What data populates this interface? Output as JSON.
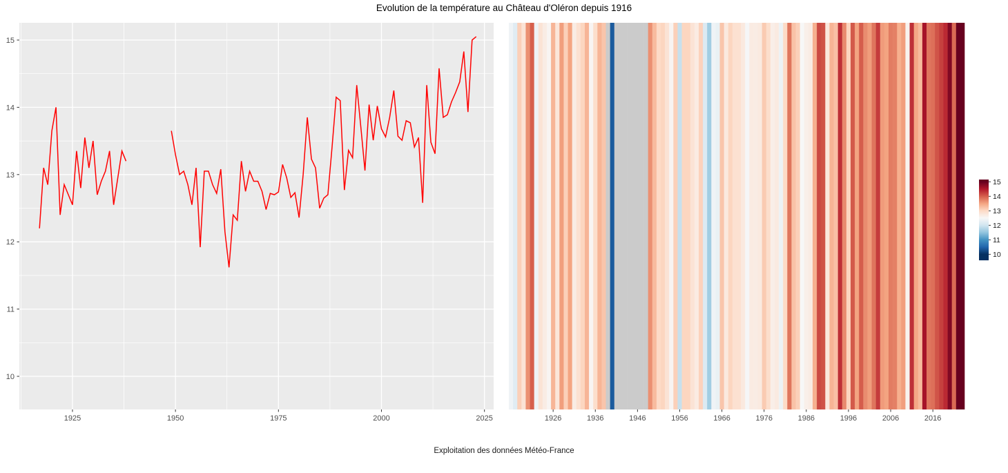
{
  "title": "Evolution de la température au Château d'Oléron depuis 1916",
  "caption": "Exploitation des données Météo-France",
  "colors": {
    "line": "#FF0000",
    "panel_bg": "#EBEBEB",
    "grid": "#FFFFFF",
    "na_stripe": "#CBCBCB",
    "axis_text": "#4D4D4D",
    "legend_text": "#1A1A1A",
    "rdbu_stops": [
      "#053061",
      "#2166AC",
      "#4393C3",
      "#92C5DE",
      "#D1E5F0",
      "#F7F7F7",
      "#FDDBC7",
      "#F4A582",
      "#D6604D",
      "#B2182B",
      "#67001F"
    ]
  },
  "chart_data": {
    "type": [
      "line",
      "heatmap-stripes"
    ],
    "title": "Evolution de la température au Château d'Oléron depuis 1916",
    "caption": "Exploitation des données Météo-France",
    "ylabel": "",
    "xlabel": "",
    "line_axis": {
      "x_ticks": [
        1925,
        1950,
        1975,
        2000,
        2025
      ],
      "y_ticks": [
        10,
        11,
        12,
        13,
        14,
        15
      ],
      "ylim_ticks": [
        10,
        15
      ],
      "grid": true
    },
    "stripes_axis": {
      "x_ticks": [
        1926,
        1936,
        1946,
        1956,
        1966,
        1976,
        1986,
        1996,
        2006,
        2016
      ]
    },
    "legend": {
      "position": "right",
      "ticks": [
        15,
        14,
        13,
        12,
        11,
        10
      ],
      "range": [
        10,
        15
      ]
    },
    "line_start_year": 1917,
    "series": [
      [
        1916,
        12.4
      ],
      [
        1917,
        12.2
      ],
      [
        1918,
        13.1
      ],
      [
        1919,
        12.85
      ],
      [
        1920,
        13.65
      ],
      [
        1921,
        14.0
      ],
      [
        1922,
        12.4
      ],
      [
        1923,
        12.85
      ],
      [
        1924,
        12.7
      ],
      [
        1925,
        12.55
      ],
      [
        1926,
        13.35
      ],
      [
        1927,
        12.8
      ],
      [
        1928,
        13.55
      ],
      [
        1929,
        13.1
      ],
      [
        1930,
        13.5
      ],
      [
        1931,
        12.7
      ],
      [
        1932,
        12.9
      ],
      [
        1933,
        13.05
      ],
      [
        1934,
        13.35
      ],
      [
        1935,
        12.55
      ],
      [
        1936,
        12.95
      ],
      [
        1937,
        13.35
      ],
      [
        1938,
        13.2
      ],
      [
        1939,
        null
      ],
      [
        1940,
        10.4
      ],
      [
        1941,
        null
      ],
      [
        1942,
        null
      ],
      [
        1943,
        null
      ],
      [
        1944,
        null
      ],
      [
        1945,
        null
      ],
      [
        1946,
        null
      ],
      [
        1947,
        null
      ],
      [
        1948,
        null
      ],
      [
        1949,
        13.65
      ],
      [
        1950,
        13.3
      ],
      [
        1951,
        13.0
      ],
      [
        1952,
        13.05
      ],
      [
        1953,
        12.85
      ],
      [
        1954,
        12.55
      ],
      [
        1955,
        13.1
      ],
      [
        1956,
        11.92
      ],
      [
        1957,
        13.05
      ],
      [
        1958,
        13.05
      ],
      [
        1959,
        12.85
      ],
      [
        1960,
        12.72
      ],
      [
        1961,
        13.08
      ],
      [
        1962,
        12.15
      ],
      [
        1963,
        11.62
      ],
      [
        1964,
        12.4
      ],
      [
        1965,
        12.32
      ],
      [
        1966,
        13.2
      ],
      [
        1967,
        12.75
      ],
      [
        1968,
        13.05
      ],
      [
        1969,
        12.9
      ],
      [
        1970,
        12.9
      ],
      [
        1971,
        12.75
      ],
      [
        1972,
        12.48
      ],
      [
        1973,
        12.72
      ],
      [
        1974,
        12.7
      ],
      [
        1975,
        12.74
      ],
      [
        1976,
        13.15
      ],
      [
        1977,
        12.95
      ],
      [
        1978,
        12.66
      ],
      [
        1979,
        12.73
      ],
      [
        1980,
        12.36
      ],
      [
        1981,
        13.0
      ],
      [
        1982,
        13.85
      ],
      [
        1983,
        13.23
      ],
      [
        1984,
        13.1
      ],
      [
        1985,
        12.5
      ],
      [
        1986,
        12.65
      ],
      [
        1987,
        12.7
      ],
      [
        1988,
        13.4
      ],
      [
        1989,
        14.15
      ],
      [
        1990,
        14.1
      ],
      [
        1991,
        12.77
      ],
      [
        1992,
        13.36
      ],
      [
        1993,
        13.25
      ],
      [
        1994,
        14.33
      ],
      [
        1995,
        13.7
      ],
      [
        1996,
        13.06
      ],
      [
        1997,
        14.04
      ],
      [
        1998,
        13.51
      ],
      [
        1999,
        14.02
      ],
      [
        2000,
        13.68
      ],
      [
        2001,
        13.56
      ],
      [
        2002,
        13.85
      ],
      [
        2003,
        14.25
      ],
      [
        2004,
        13.57
      ],
      [
        2005,
        13.51
      ],
      [
        2006,
        13.8
      ],
      [
        2007,
        13.77
      ],
      [
        2008,
        13.41
      ],
      [
        2009,
        13.55
      ],
      [
        2010,
        12.58
      ],
      [
        2011,
        14.33
      ],
      [
        2012,
        13.48
      ],
      [
        2013,
        13.31
      ],
      [
        2014,
        14.58
      ],
      [
        2015,
        13.85
      ],
      [
        2016,
        13.89
      ],
      [
        2017,
        14.08
      ],
      [
        2018,
        14.22
      ],
      [
        2019,
        14.38
      ],
      [
        2020,
        14.83
      ],
      [
        2021,
        13.93
      ],
      [
        2022,
        15.0
      ],
      [
        2023,
        15.05
      ]
    ]
  }
}
